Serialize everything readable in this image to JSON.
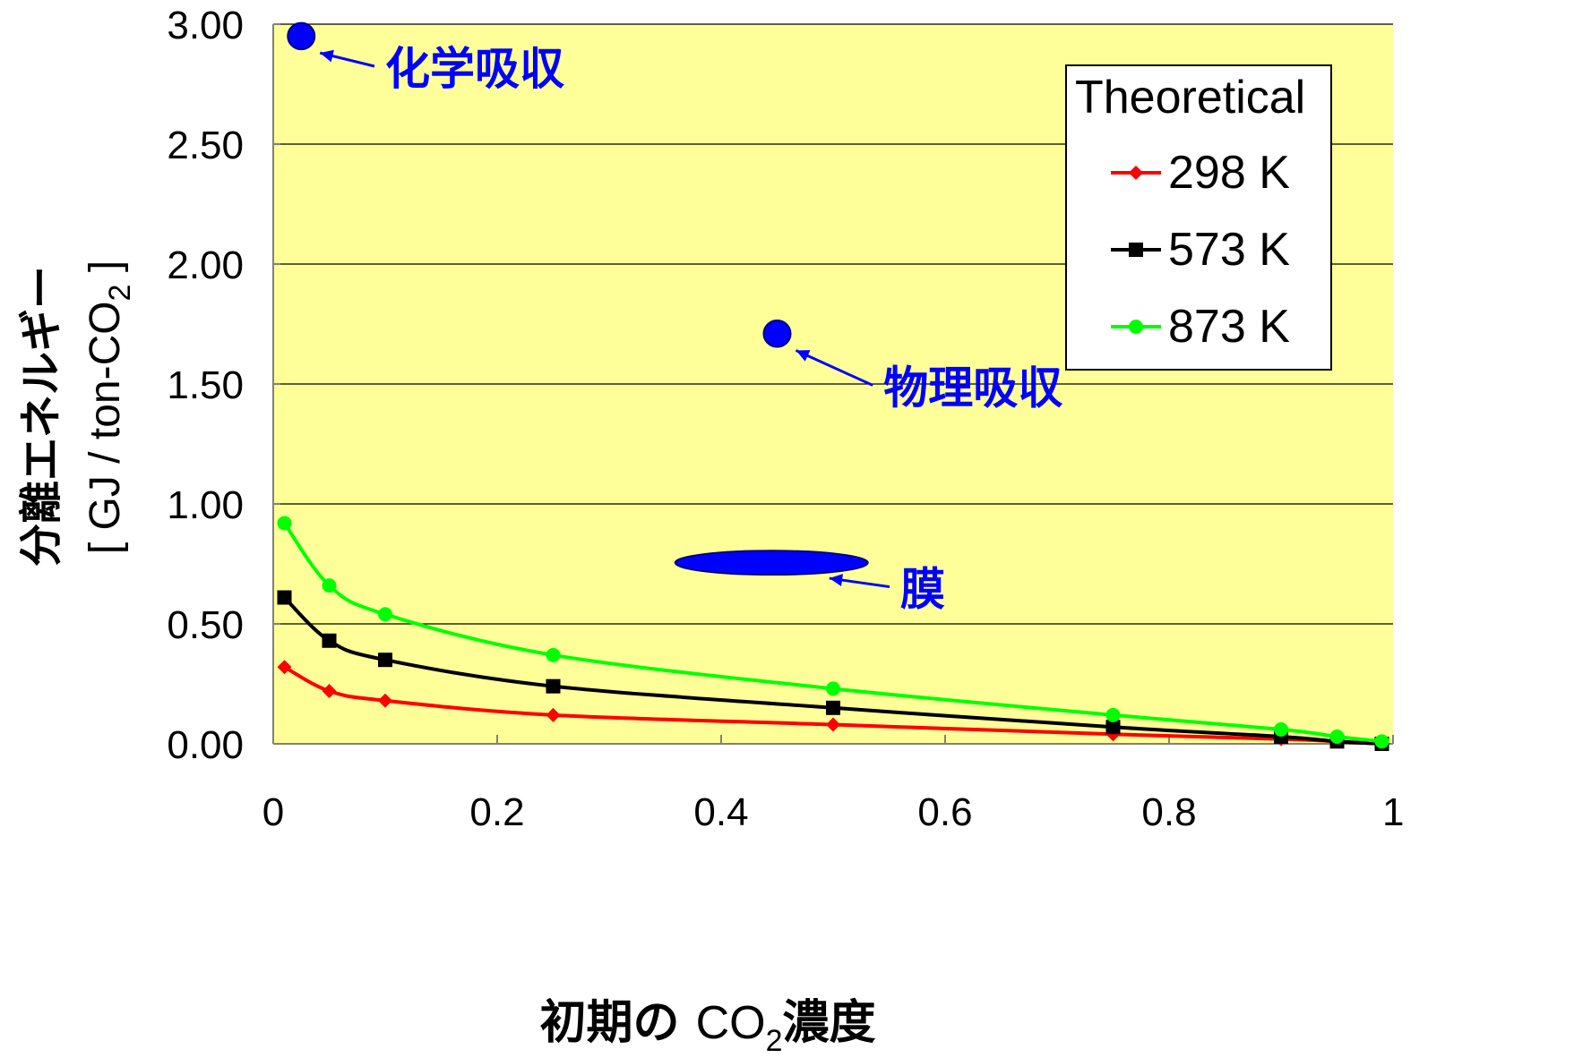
{
  "chart_data": {
    "type": "line",
    "xlabel": {
      "prefix": "初期の ",
      "co": "CO",
      "sub": "2",
      "suffix": "濃度"
    },
    "ylabel": {
      "line1": "分離エネルギー",
      "line2_prefix": "[ GJ / ton-CO",
      "line2_sub": "2",
      "line2_suffix": " ]"
    },
    "xlim": [
      0,
      1
    ],
    "ylim": [
      0,
      3.0
    ],
    "x_ticks": [
      0,
      0.2,
      0.4,
      0.6,
      0.8,
      1
    ],
    "x_tick_labels": [
      "0",
      "0.2",
      "0.4",
      "0.6",
      "0.8",
      "1"
    ],
    "y_ticks": [
      0,
      0.5,
      1.0,
      1.5,
      2.0,
      2.5,
      3.0
    ],
    "y_tick_labels": [
      "0.00",
      "0.50",
      "1.00",
      "1.50",
      "2.00",
      "2.50",
      "3.00"
    ],
    "grid": "horizontal",
    "legend": {
      "title": "Theoretical",
      "placement": "top-right"
    },
    "series": [
      {
        "name": "298 K",
        "color": "#ff0000",
        "marker": "diamond",
        "x": [
          0.01,
          0.05,
          0.1,
          0.25,
          0.5,
          0.75,
          0.9,
          0.95,
          0.99
        ],
        "y": [
          0.32,
          0.22,
          0.18,
          0.12,
          0.08,
          0.04,
          0.02,
          0.01,
          0.0
        ]
      },
      {
        "name": "573 K",
        "color": "#000000",
        "marker": "square",
        "x": [
          0.01,
          0.05,
          0.1,
          0.25,
          0.5,
          0.75,
          0.9,
          0.95,
          0.99
        ],
        "y": [
          0.61,
          0.43,
          0.35,
          0.24,
          0.15,
          0.07,
          0.03,
          0.01,
          0.0
        ]
      },
      {
        "name": "873 K",
        "color": "#00ff00",
        "marker": "circle",
        "x": [
          0.01,
          0.05,
          0.1,
          0.25,
          0.5,
          0.75,
          0.9,
          0.95,
          0.99
        ],
        "y": [
          0.92,
          0.66,
          0.54,
          0.37,
          0.23,
          0.12,
          0.06,
          0.03,
          0.01
        ]
      }
    ],
    "annotations": [
      {
        "label": "化学吸収",
        "x": 0.025,
        "y": 2.95,
        "marker": "circle",
        "text_x": 0.1,
        "text_y": 2.75,
        "rx_data": 0.012,
        "ry_data": 0.055
      },
      {
        "label": "物理吸収",
        "x": 0.45,
        "y": 1.71,
        "marker": "circle",
        "text_x": 0.545,
        "text_y": 1.42,
        "rx_data": 0.012,
        "ry_data": 0.055
      },
      {
        "label": "膜",
        "x": 0.445,
        "y": 0.755,
        "marker": "ellipse",
        "text_x": 0.56,
        "text_y": 0.58,
        "rx_data": 0.086,
        "ry_data": 0.05
      }
    ],
    "colors": {
      "plot_background": "#ffff99",
      "annotation": "#0000ff"
    }
  }
}
